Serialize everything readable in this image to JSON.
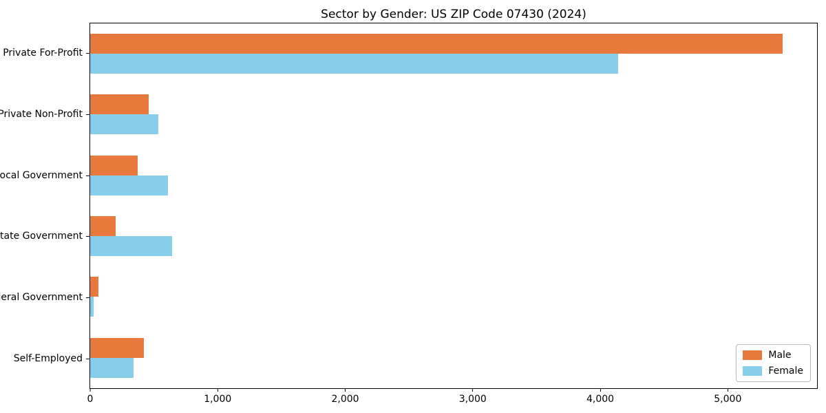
{
  "title": "Sector by Gender: US ZIP Code 07430 (2024)",
  "colors": {
    "male": "#e8793d",
    "female": "#87ceeb",
    "axis": "#000000",
    "legend_border": "#b7b7b7",
    "background": "#ffffff"
  },
  "chart_data": {
    "type": "bar",
    "orientation": "horizontal",
    "title": "Sector by Gender: US ZIP Code 07430 (2024)",
    "xlabel": "",
    "ylabel": "",
    "categories": [
      "Private For-Profit",
      "Private Non-Profit",
      "Local Government",
      "State Government",
      "Federal Government",
      "Self-Employed"
    ],
    "series": [
      {
        "name": "Male",
        "color": "#e8793d",
        "values": [
          5430,
          460,
          370,
          200,
          65,
          420
        ]
      },
      {
        "name": "Female",
        "color": "#87ceeb",
        "values": [
          4140,
          535,
          610,
          640,
          27,
          340
        ]
      }
    ],
    "xlim": [
      0,
      5700
    ],
    "xticks": [
      0,
      1000,
      2000,
      3000,
      4000,
      5000
    ],
    "xtick_labels": [
      "0",
      "1,000",
      "2,000",
      "3,000",
      "4,000",
      "5,000"
    ],
    "grid": false,
    "legend": {
      "position": "lower right",
      "entries": [
        "Male",
        "Female"
      ]
    }
  }
}
